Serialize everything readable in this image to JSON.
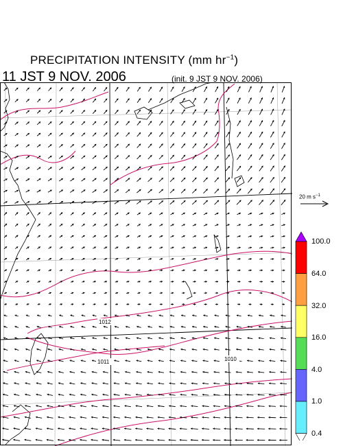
{
  "header": {
    "title_prefix": "PRECIPITATION INTENSITY (mm hr",
    "title_exp": "−1",
    "title_suffix": ")",
    "valid_time": "11 JST 9 NOV. 2006",
    "init_time": "(init. 9 JST 9 NOV. 2006)"
  },
  "wind_reference": {
    "prefix": "20 m s",
    "exp": "−1"
  },
  "isobar_labels": [
    "1012",
    "1011",
    "1010"
  ],
  "colorbar": {
    "ticks": [
      "100.0",
      "64.0",
      "32.0",
      "16.0",
      "4.0",
      "1.0",
      "0.4"
    ],
    "colors": [
      "#ff0000",
      "#ffa040",
      "#ffff66",
      "#55dd55",
      "#6666ff",
      "#66eeff"
    ],
    "over_color": "#aa00ff",
    "under_color": "#ffffff"
  },
  "colors": {
    "isobar": "#cc1166",
    "frame": "#000000",
    "grid": "#999999"
  }
}
